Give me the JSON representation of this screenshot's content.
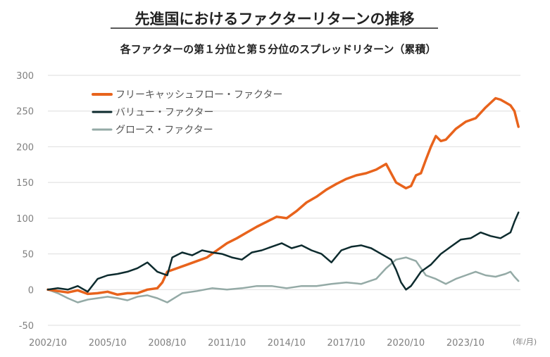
{
  "chart_data": {
    "type": "line",
    "title": "先進国におけるファクターリターンの推移",
    "subtitle": "各ファクターの第１分位と第５分位のスプレッドリターン（累積）",
    "x_unit_label": "(年/月)",
    "x_ticks": [
      "2002/10",
      "2005/10",
      "2008/10",
      "2011/10",
      "2014/10",
      "2017/10",
      "2020/10",
      "2023/10"
    ],
    "y_ticks": [
      300,
      250,
      200,
      150,
      100,
      50,
      0,
      -50
    ],
    "ylim": [
      -50,
      300
    ],
    "xlim": [
      2002.75,
      2026.5
    ],
    "grid": true,
    "legend_position": "top-left",
    "series": [
      {
        "name": "フリーキャッシュフロー・ファクター",
        "color": "#e8631c",
        "x": [
          2002.75,
          2003.25,
          2003.75,
          2004.25,
          2004.75,
          2005.25,
          2005.75,
          2006.25,
          2006.75,
          2007.25,
          2007.75,
          2008.25,
          2008.5,
          2008.75,
          2009.25,
          2009.75,
          2010.25,
          2010.75,
          2011.25,
          2011.75,
          2012.25,
          2012.75,
          2013.25,
          2013.75,
          2014.25,
          2014.75,
          2015.25,
          2015.75,
          2016.25,
          2016.75,
          2017.25,
          2017.75,
          2018.25,
          2018.75,
          2019.25,
          2019.75,
          2020.25,
          2020.75,
          2021.0,
          2021.25,
          2021.5,
          2021.75,
          2022.0,
          2022.25,
          2022.5,
          2022.75,
          2023.25,
          2023.75,
          2024.25,
          2024.75,
          2025.25,
          2025.5,
          2025.75,
          2026.0,
          2026.2,
          2026.4
        ],
        "values": [
          0,
          -2,
          -4,
          -1,
          -6,
          -5,
          -3,
          -7,
          -5,
          -5,
          0,
          2,
          10,
          25,
          30,
          35,
          40,
          45,
          55,
          65,
          72,
          80,
          88,
          95,
          102,
          100,
          110,
          122,
          130,
          140,
          148,
          155,
          160,
          163,
          168,
          176,
          150,
          142,
          145,
          160,
          163,
          182,
          200,
          215,
          208,
          210,
          225,
          235,
          240,
          255,
          268,
          266,
          262,
          258,
          250,
          228
        ]
      },
      {
        "name": "バリュー・ファクター",
        "color": "#0d2b2e",
        "x": [
          2002.75,
          2003.25,
          2003.75,
          2004.25,
          2004.75,
          2005.25,
          2005.75,
          2006.25,
          2006.75,
          2007.25,
          2007.75,
          2008.25,
          2008.75,
          2009.0,
          2009.5,
          2010.0,
          2010.5,
          2011.0,
          2011.5,
          2012.0,
          2012.5,
          2013.0,
          2013.5,
          2014.0,
          2014.5,
          2015.0,
          2015.5,
          2016.0,
          2016.5,
          2017.0,
          2017.5,
          2018.0,
          2018.5,
          2019.0,
          2019.5,
          2020.0,
          2020.25,
          2020.5,
          2020.75,
          2021.0,
          2021.25,
          2021.5,
          2022.0,
          2022.5,
          2023.0,
          2023.5,
          2024.0,
          2024.5,
          2025.0,
          2025.5,
          2026.0,
          2026.2,
          2026.4
        ],
        "values": [
          0,
          2,
          0,
          5,
          -3,
          15,
          20,
          22,
          25,
          30,
          38,
          25,
          20,
          45,
          52,
          48,
          55,
          52,
          50,
          45,
          42,
          52,
          55,
          60,
          65,
          58,
          62,
          55,
          50,
          38,
          55,
          60,
          62,
          58,
          50,
          42,
          28,
          10,
          0,
          5,
          15,
          25,
          35,
          50,
          60,
          70,
          72,
          80,
          75,
          72,
          80,
          95,
          108
        ]
      },
      {
        "name": "グロース・ファクター",
        "color": "#94aaa6",
        "x": [
          2002.75,
          2003.25,
          2003.75,
          2004.25,
          2004.75,
          2005.25,
          2005.75,
          2006.25,
          2006.75,
          2007.25,
          2007.75,
          2008.25,
          2008.75,
          2009.5,
          2010.25,
          2011.0,
          2011.75,
          2012.5,
          2013.25,
          2014.0,
          2014.75,
          2015.5,
          2016.25,
          2017.0,
          2017.75,
          2018.5,
          2019.25,
          2019.75,
          2020.25,
          2020.75,
          2021.25,
          2021.75,
          2022.25,
          2022.75,
          2023.25,
          2023.75,
          2024.25,
          2024.75,
          2025.25,
          2025.75,
          2026.0,
          2026.2,
          2026.4
        ],
        "values": [
          0,
          -5,
          -12,
          -18,
          -14,
          -12,
          -10,
          -12,
          -15,
          -10,
          -8,
          -12,
          -18,
          -5,
          -2,
          2,
          0,
          2,
          5,
          5,
          2,
          5,
          5,
          8,
          10,
          8,
          15,
          30,
          42,
          45,
          40,
          20,
          15,
          8,
          15,
          20,
          25,
          20,
          18,
          22,
          25,
          18,
          12
        ]
      }
    ]
  }
}
